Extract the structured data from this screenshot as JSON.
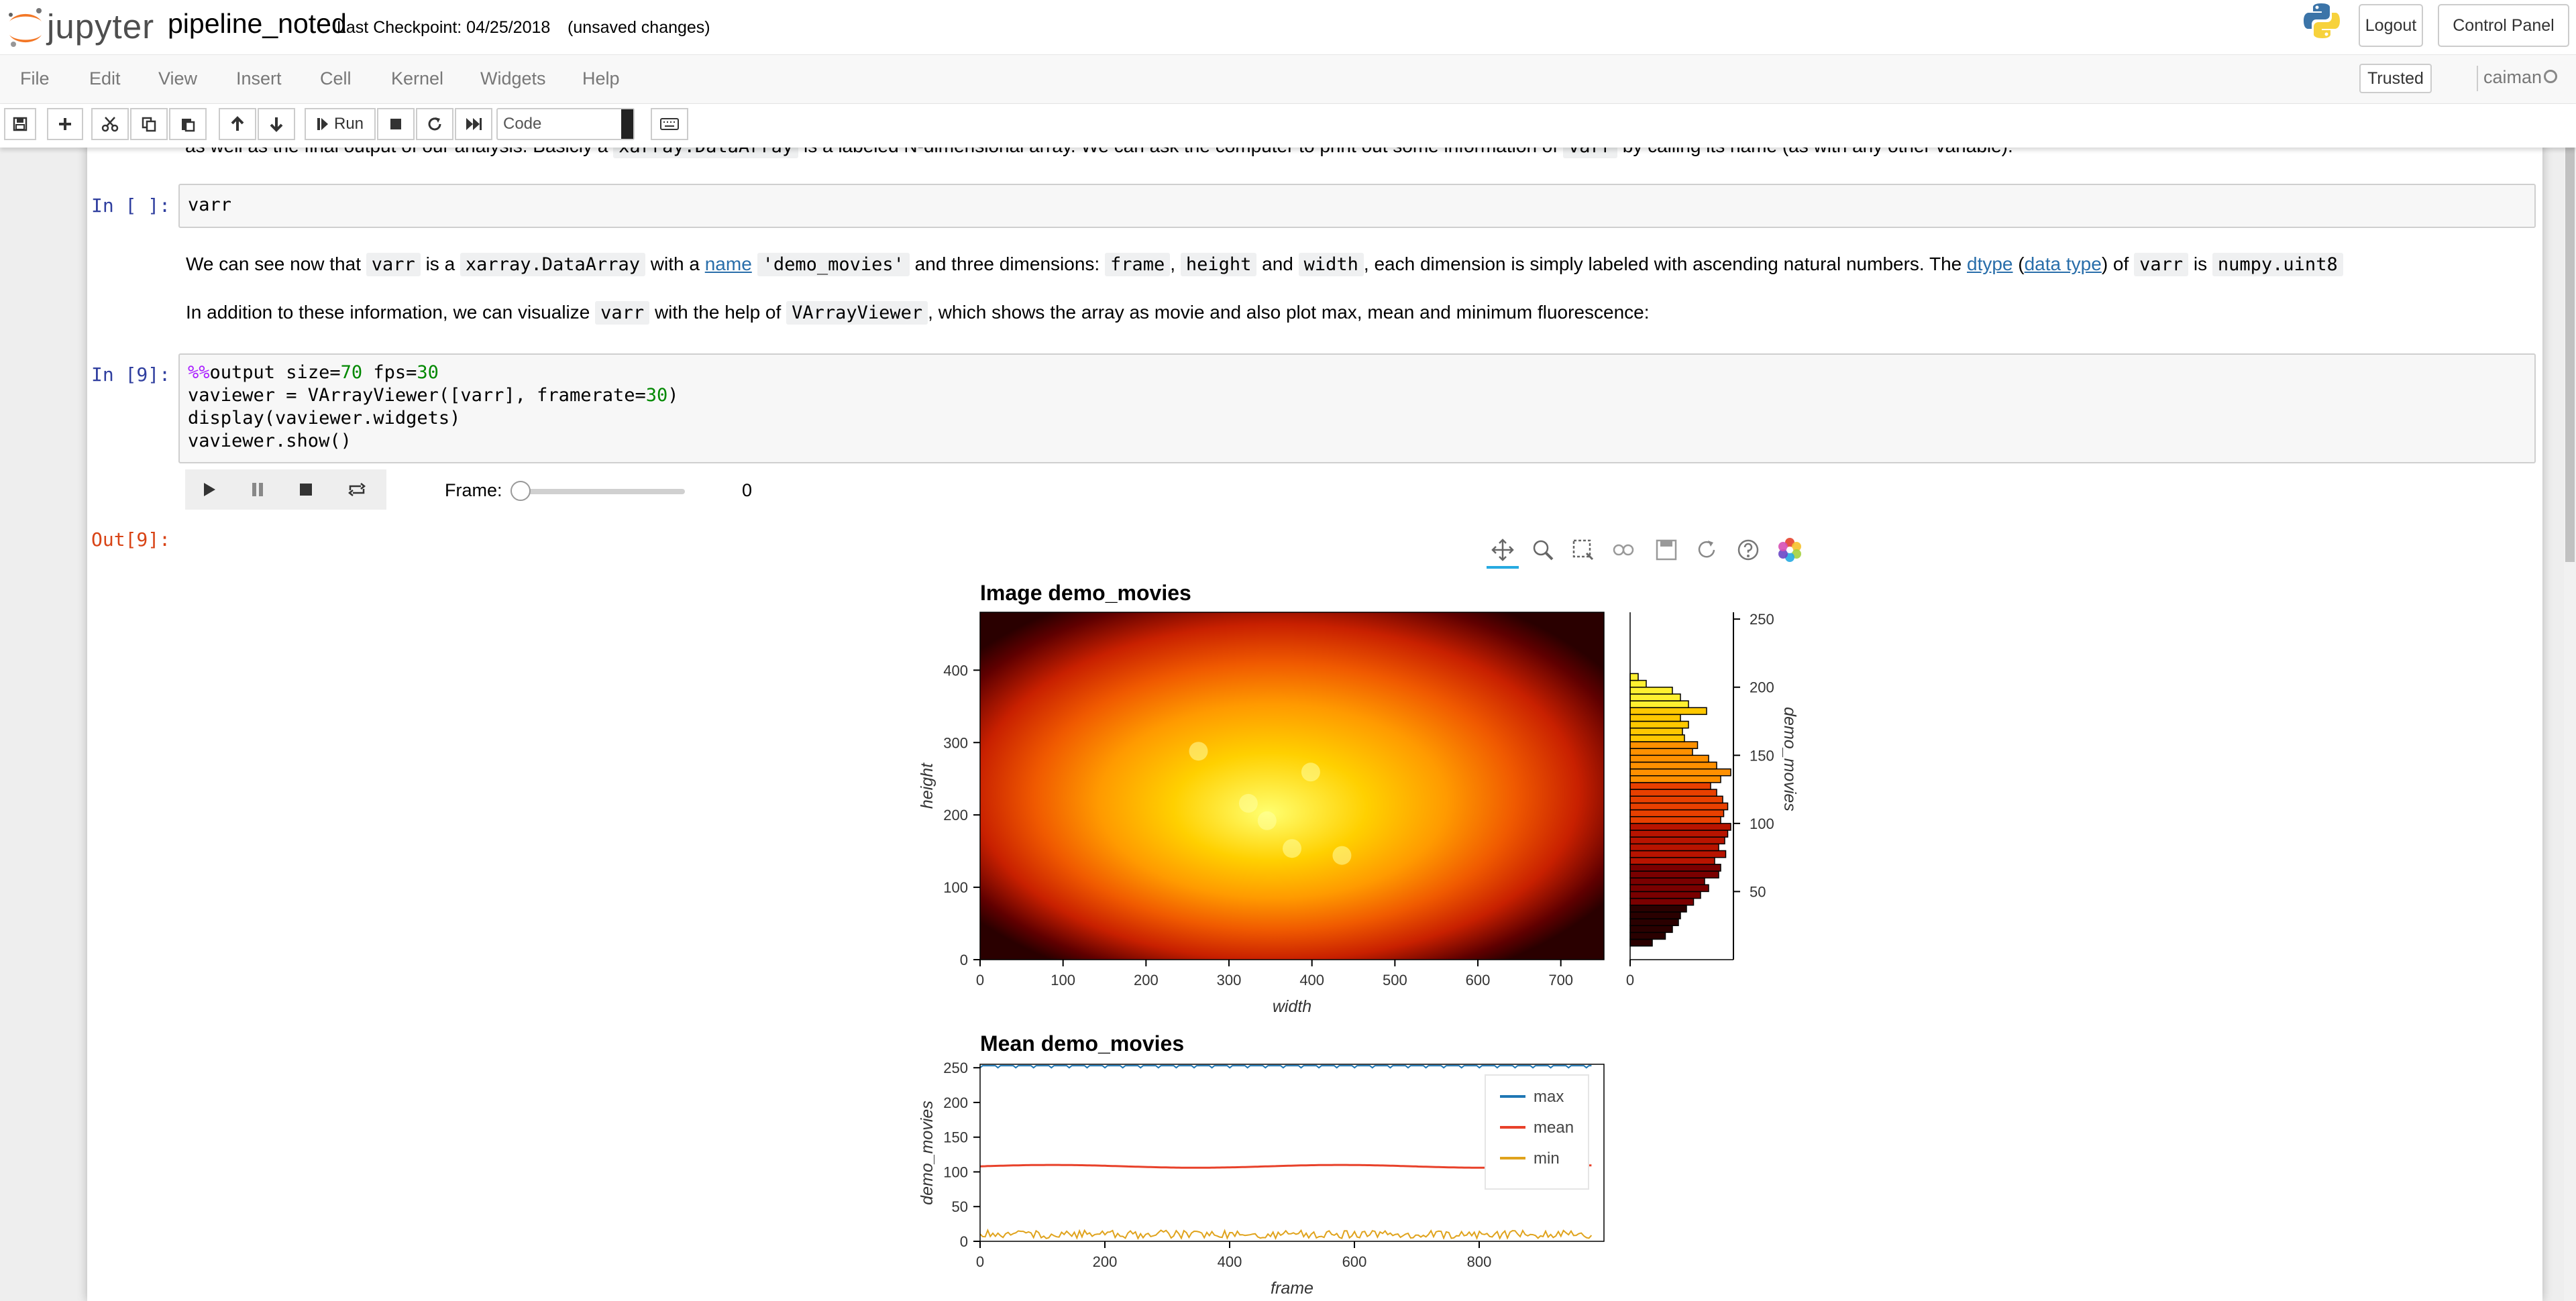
{
  "header": {
    "logo_text": "jupyter",
    "notebook_name": "pipeline_noted",
    "checkpoint": "Last Checkpoint: 04/25/2018",
    "autosave_status": "(unsaved changes)",
    "logout_label": "Logout",
    "control_panel_label": "Control Panel"
  },
  "menubar": {
    "items": [
      "File",
      "Edit",
      "View",
      "Insert",
      "Cell",
      "Kernel",
      "Widgets",
      "Help"
    ],
    "trusted_label": "Trusted",
    "kernel_name": "caiman"
  },
  "toolbar": {
    "run_label": "Run",
    "cell_type": "Code"
  },
  "cells": {
    "top_partial_text": "as well as the final output of our analysis. Basicly a",
    "top_partial_code": "xarray.DataArray",
    "top_partial_text2": "is a labeled N-dimensional array. We can ask the computer to print out some information of",
    "top_partial_code2": "varr",
    "top_partial_text3": "by calling its name (as with any other variable).",
    "cell1_prompt": "In [ ]:",
    "cell1_code": "varr",
    "md1": {
      "t1": "We can see now that",
      "c1": "varr",
      "t2": "is a",
      "c2": "xarray.DataArray",
      "t3": "with a",
      "l1": "name",
      "c3": "'demo_movies'",
      "t4": "and three dimensions:",
      "c4": "frame",
      "t5": ",",
      "c5": "height",
      "t6": "and",
      "c6": "width",
      "t7": ", each dimension is simply labeled with ascending natural numbers. The",
      "l2": "dtype",
      "t8": "(",
      "l3": "data type",
      "t9": ") of",
      "c7": "varr",
      "t10": "is",
      "c8": "numpy.uint8"
    },
    "md2": {
      "t1": "In addition to these information, we can visualize",
      "c1": "varr",
      "t2": "with the help of",
      "c2": "VArrayViewer",
      "t3": ", which shows the array as movie and also plot max, mean and minimum fluorescence:"
    },
    "cell2_prompt": "In [9]:",
    "cell2_lines": {
      "l1_magic": "%%",
      "l1_rest": "output size=",
      "l1_num1": "70",
      "l1_mid": " fps=",
      "l1_num2": "30",
      "l2_a": "vaviewer = VArrayViewer([varr], framerate=",
      "l2_num": "30",
      "l2_b": ")",
      "l3": "display(vaviewer.widgets)",
      "l4": "vaviewer.show()"
    },
    "widget": {
      "frame_label": "Frame:",
      "frame_value": "0",
      "slider_fraction": 0
    },
    "out_prompt": "Out[9]:"
  },
  "chart_data": [
    {
      "type": "heatmap",
      "title": "Image demo_movies",
      "xlabel": "width",
      "ylabel": "height",
      "xlim": [
        0,
        752
      ],
      "ylim": [
        0,
        480
      ],
      "xticks": [
        "0",
        "100",
        "200",
        "300",
        "400",
        "500",
        "600",
        "700"
      ],
      "yticks": [
        "0",
        "100",
        "200",
        "300",
        "400"
      ],
      "colormap": [
        "#000000",
        "#8b0000",
        "#e02000",
        "#ff8000",
        "#ffd000",
        "#ffff60"
      ]
    },
    {
      "type": "bar",
      "orientation": "horizontal",
      "title": "",
      "ylabel": "demo_movies",
      "ylim": [
        0,
        255
      ],
      "yticks": [
        "50",
        "100",
        "150",
        "200",
        "250"
      ],
      "xticks": [
        "0"
      ],
      "bin_size": 5,
      "bins": [
        10,
        15,
        20,
        25,
        30,
        35,
        40,
        45,
        50,
        55,
        60,
        65,
        70,
        75,
        80,
        85,
        90,
        95,
        100,
        105,
        110,
        115,
        120,
        125,
        130,
        135,
        140,
        145,
        150,
        155,
        160,
        165,
        170,
        175,
        180,
        185,
        190,
        195,
        200,
        205
      ],
      "values": [
        0.22,
        0.35,
        0.42,
        0.48,
        0.5,
        0.56,
        0.63,
        0.7,
        0.78,
        0.74,
        0.88,
        0.9,
        0.84,
        0.95,
        0.88,
        0.94,
        0.97,
        1.0,
        0.9,
        0.93,
        0.97,
        0.92,
        0.86,
        0.8,
        0.9,
        1.0,
        0.86,
        0.78,
        0.62,
        0.67,
        0.54,
        0.52,
        0.58,
        0.5,
        0.76,
        0.58,
        0.5,
        0.42,
        0.16,
        0.08
      ]
    },
    {
      "type": "line",
      "title": "Mean demo_movies",
      "xlabel": "frame",
      "ylabel": "demo_movies",
      "xlim": [
        0,
        1000
      ],
      "ylim": [
        0,
        255
      ],
      "xticks": [
        "0",
        "200",
        "400",
        "600",
        "800"
      ],
      "yticks": [
        "0",
        "50",
        "100",
        "150",
        "200",
        "250"
      ],
      "legend_position": "top-right",
      "series": [
        {
          "name": "max",
          "color": "#1f77b4",
          "value": 253
        },
        {
          "name": "mean",
          "color": "#e8412a",
          "value": 108
        },
        {
          "name": "min",
          "color": "#e0a31c",
          "value": 7
        }
      ]
    }
  ]
}
